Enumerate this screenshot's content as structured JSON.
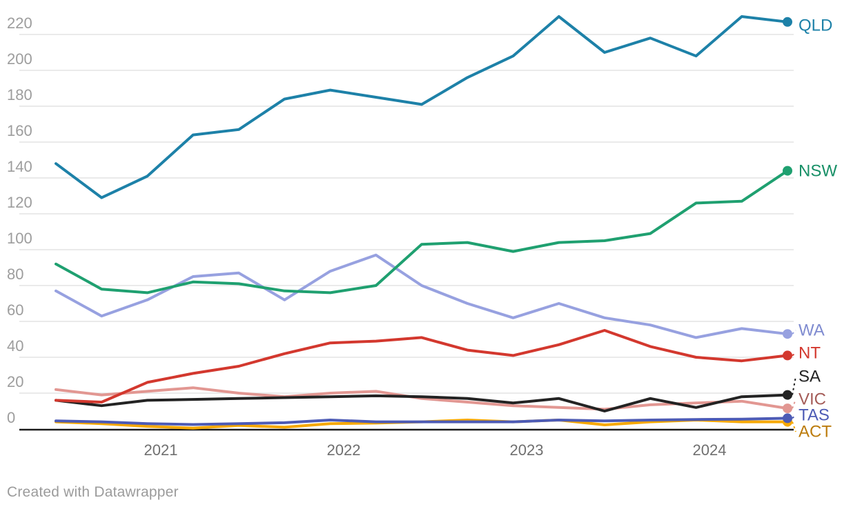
{
  "chart_data": {
    "type": "line",
    "x": [
      "2020 Q3",
      "2020 Q4",
      "2021 Q1",
      "2021 Q2",
      "2021 Q3",
      "2021 Q4",
      "2022 Q1",
      "2022 Q2",
      "2022 Q3",
      "2022 Q4",
      "2023 Q1",
      "2023 Q2",
      "2023 Q3",
      "2023 Q4",
      "2024 Q1",
      "2024 Q2",
      "2024 Q3"
    ],
    "x_ticks": [
      "2021",
      "2022",
      "2023",
      "2024"
    ],
    "y_ticks": [
      0,
      20,
      40,
      60,
      80,
      100,
      120,
      140,
      160,
      180,
      200,
      220
    ],
    "ylim": [
      0,
      232
    ],
    "grid": "horizontal",
    "legend_position": "direct-right",
    "series": [
      {
        "name": "QLD",
        "color": "#1d81a8",
        "label_color": "#1d81a8",
        "values": [
          148,
          129,
          141,
          164,
          167,
          184,
          189,
          185,
          181,
          196,
          208,
          230,
          210,
          218,
          208,
          230,
          227
        ]
      },
      {
        "name": "NSW",
        "color": "#1fa070",
        "label_color": "#189067",
        "values": [
          92,
          78,
          76,
          82,
          81,
          77,
          76,
          80,
          103,
          104,
          99,
          104,
          105,
          109,
          126,
          127,
          144
        ]
      },
      {
        "name": "WA",
        "color": "#97a1e0",
        "label_color": "#7f8bd0",
        "values": [
          77,
          63,
          72,
          85,
          87,
          72,
          88,
          97,
          80,
          70,
          62,
          70,
          62,
          58,
          51,
          56,
          53
        ]
      },
      {
        "name": "NT",
        "color": "#d3382e",
        "label_color": "#d3382e",
        "values": [
          16,
          15,
          26,
          31,
          35,
          42,
          48,
          49,
          51,
          44,
          41,
          47,
          55,
          46,
          40,
          38,
          41
        ]
      },
      {
        "name": "SA",
        "color": "#232323",
        "label_color": "#232323",
        "values": [
          16,
          13,
          16,
          16.5,
          17,
          17.5,
          18,
          18.5,
          18,
          17,
          14.5,
          17,
          10,
          17,
          12,
          18,
          19
        ]
      },
      {
        "name": "VIC",
        "color": "#e29792",
        "label_color": "#a45c58",
        "values": [
          22,
          19,
          21,
          23,
          20,
          18,
          20,
          21,
          17,
          15,
          13,
          12,
          11,
          13.5,
          14.5,
          15.5,
          11.5
        ]
      },
      {
        "name": "TAS",
        "color": "#4d5bb5",
        "label_color": "#4d5bb5",
        "values": [
          4.5,
          4,
          3,
          2.5,
          3,
          3.5,
          5,
          4,
          4,
          4,
          4,
          5,
          4.5,
          5,
          5.3,
          5.5,
          6
        ]
      },
      {
        "name": "ACT",
        "color": "#f6a800",
        "label_color": "#bc7c0d",
        "values": [
          4,
          3,
          1.5,
          0.5,
          2,
          1,
          3,
          3.3,
          4,
          5,
          4,
          5,
          2.3,
          4,
          5,
          4,
          4
        ]
      }
    ]
  },
  "colors": {
    "gridline": "#e4e4e4",
    "axis": "#1a1a1a",
    "background": "#ffffff"
  },
  "footer": {
    "credit": "Created with Datawrapper"
  }
}
